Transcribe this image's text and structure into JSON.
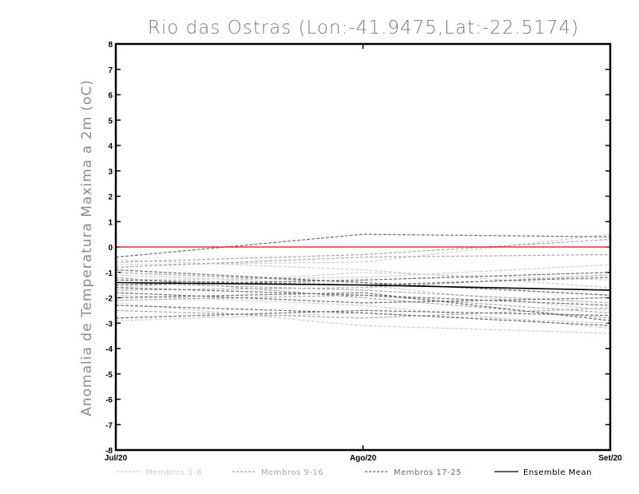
{
  "chart_data": {
    "type": "line",
    "title": "Rio das Ostras (Lon:-41.9475,Lat:-22.5174)",
    "ylabel": "Anomalia de Temperatura Maxima a 2m (oC)",
    "xlabel": "",
    "categories": [
      "Jul/20",
      "Ago/20",
      "Set/20"
    ],
    "ylim": [
      -8,
      8
    ],
    "yticks": [
      "8",
      "7",
      "6",
      "5",
      "4",
      "3",
      "2",
      "1",
      "0",
      "-1",
      "-2",
      "-3",
      "-4",
      "-5",
      "-6",
      "-7",
      "-8"
    ],
    "zero_line": {
      "value": 0,
      "color": "#e8322e"
    },
    "groups": [
      {
        "name": "Membros 1-8",
        "color": "#cfcfcf",
        "dashed": true,
        "series": [
          [
            -0.7,
            -0.6,
            0.5
          ],
          [
            -1.6,
            -1.0,
            -1.3
          ],
          [
            -2.2,
            -3.1,
            -3.4
          ],
          [
            -1.1,
            -1.5,
            -2.5
          ],
          [
            -0.5,
            -0.9,
            -1.6
          ],
          [
            -2.9,
            -2.6,
            -3.0
          ],
          [
            -1.3,
            -1.2,
            -0.7
          ],
          [
            -1.9,
            -2.3,
            -3.2
          ]
        ]
      },
      {
        "name": "Membros 9-16",
        "color": "#a8a8a8",
        "dashed": true,
        "series": [
          [
            -0.8,
            -0.4,
            -0.3
          ],
          [
            -1.4,
            -1.7,
            -2.2
          ],
          [
            -2.1,
            -1.9,
            -2.6
          ],
          [
            -1.0,
            -1.4,
            -1.9
          ],
          [
            -2.5,
            -2.8,
            -2.4
          ],
          [
            -1.7,
            -1.6,
            -1.1
          ],
          [
            -0.6,
            -0.3,
            0.3
          ],
          [
            -1.2,
            -2.0,
            -2.8
          ]
        ]
      },
      {
        "name": "Membros 17-25",
        "color": "#6e6e6e",
        "dashed": true,
        "series": [
          [
            -0.4,
            0.5,
            0.4
          ],
          [
            -1.5,
            -1.3,
            -1.0
          ],
          [
            -2.0,
            -1.8,
            -2.9
          ],
          [
            -2.8,
            -2.5,
            -2.7
          ],
          [
            -0.9,
            -1.4,
            -1.9
          ],
          [
            -1.8,
            -2.2,
            -2.0
          ],
          [
            -2.3,
            -2.6,
            -3.1
          ],
          [
            -1.3,
            -1.5,
            -1.2
          ],
          [
            -1.6,
            -1.9,
            -2.3
          ]
        ]
      }
    ],
    "ensemble_mean": {
      "name": "Ensemble Mean",
      "color": "#000000",
      "values": [
        -1.4,
        -1.5,
        -1.7
      ]
    },
    "legend": [
      {
        "label": "Membros 1-8",
        "color": "#cfcfcf",
        "dashed": true
      },
      {
        "label": "Membros 9-16",
        "color": "#a8a8a8",
        "dashed": true
      },
      {
        "label": "Membros 17-25",
        "color": "#6e6e6e",
        "dashed": true
      },
      {
        "label": "Ensemble Mean",
        "color": "#000000",
        "dashed": false
      }
    ],
    "legend_position": "bottom"
  }
}
